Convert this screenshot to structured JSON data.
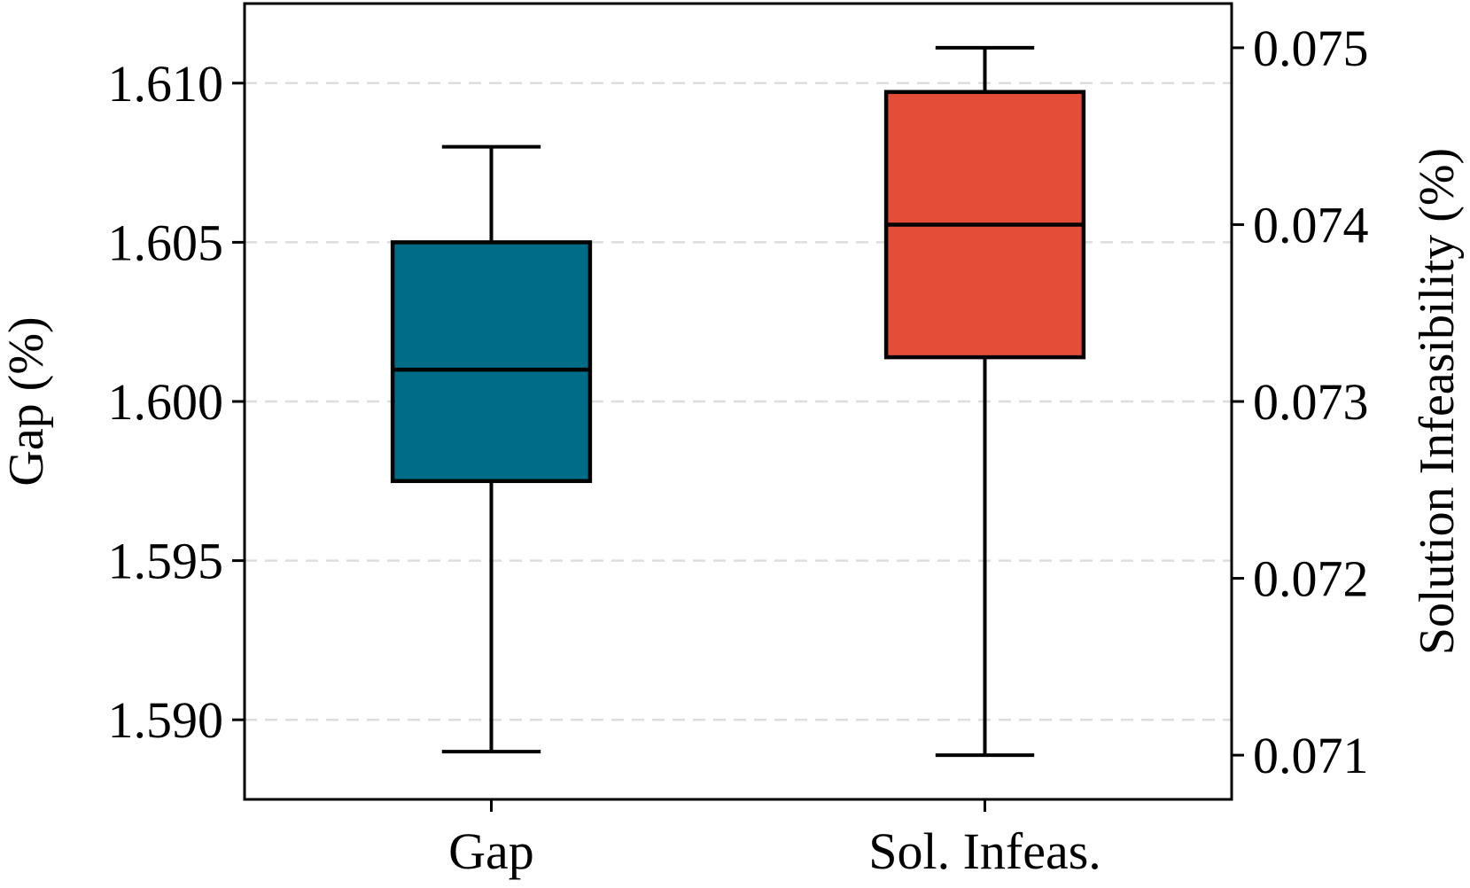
{
  "chart_data": {
    "type": "box",
    "title": "",
    "categories": [
      "Gap",
      "Sol. Infeas."
    ],
    "left_axis": {
      "label": "Gap (%)",
      "ylim": [
        1.5875,
        1.6125
      ],
      "ticks": [
        1.59,
        1.595,
        1.6,
        1.605,
        1.61
      ],
      "tick_labels": [
        "1.590",
        "1.595",
        "1.600",
        "1.605",
        "1.610"
      ]
    },
    "right_axis": {
      "label": "Solution Infeasibility (%)",
      "ylim": [
        0.07075,
        0.07525
      ],
      "ticks": [
        0.071,
        0.072,
        0.073,
        0.074,
        0.075
      ],
      "tick_labels": [
        "0.071",
        "0.072",
        "0.073",
        "0.074",
        "0.075"
      ]
    },
    "grid": "horizontal dashed",
    "series": [
      {
        "name": "Gap",
        "axis": "left",
        "color": "#006c87",
        "whisker_low": 1.589,
        "q1": 1.5975,
        "median": 1.601,
        "q3": 1.605,
        "whisker_high": 1.608
      },
      {
        "name": "Sol. Infeas.",
        "axis": "right",
        "color": "#e44d37",
        "whisker_low": 0.071,
        "q1": 0.07325,
        "median": 0.074,
        "q3": 0.07475,
        "whisker_high": 0.075
      }
    ]
  }
}
